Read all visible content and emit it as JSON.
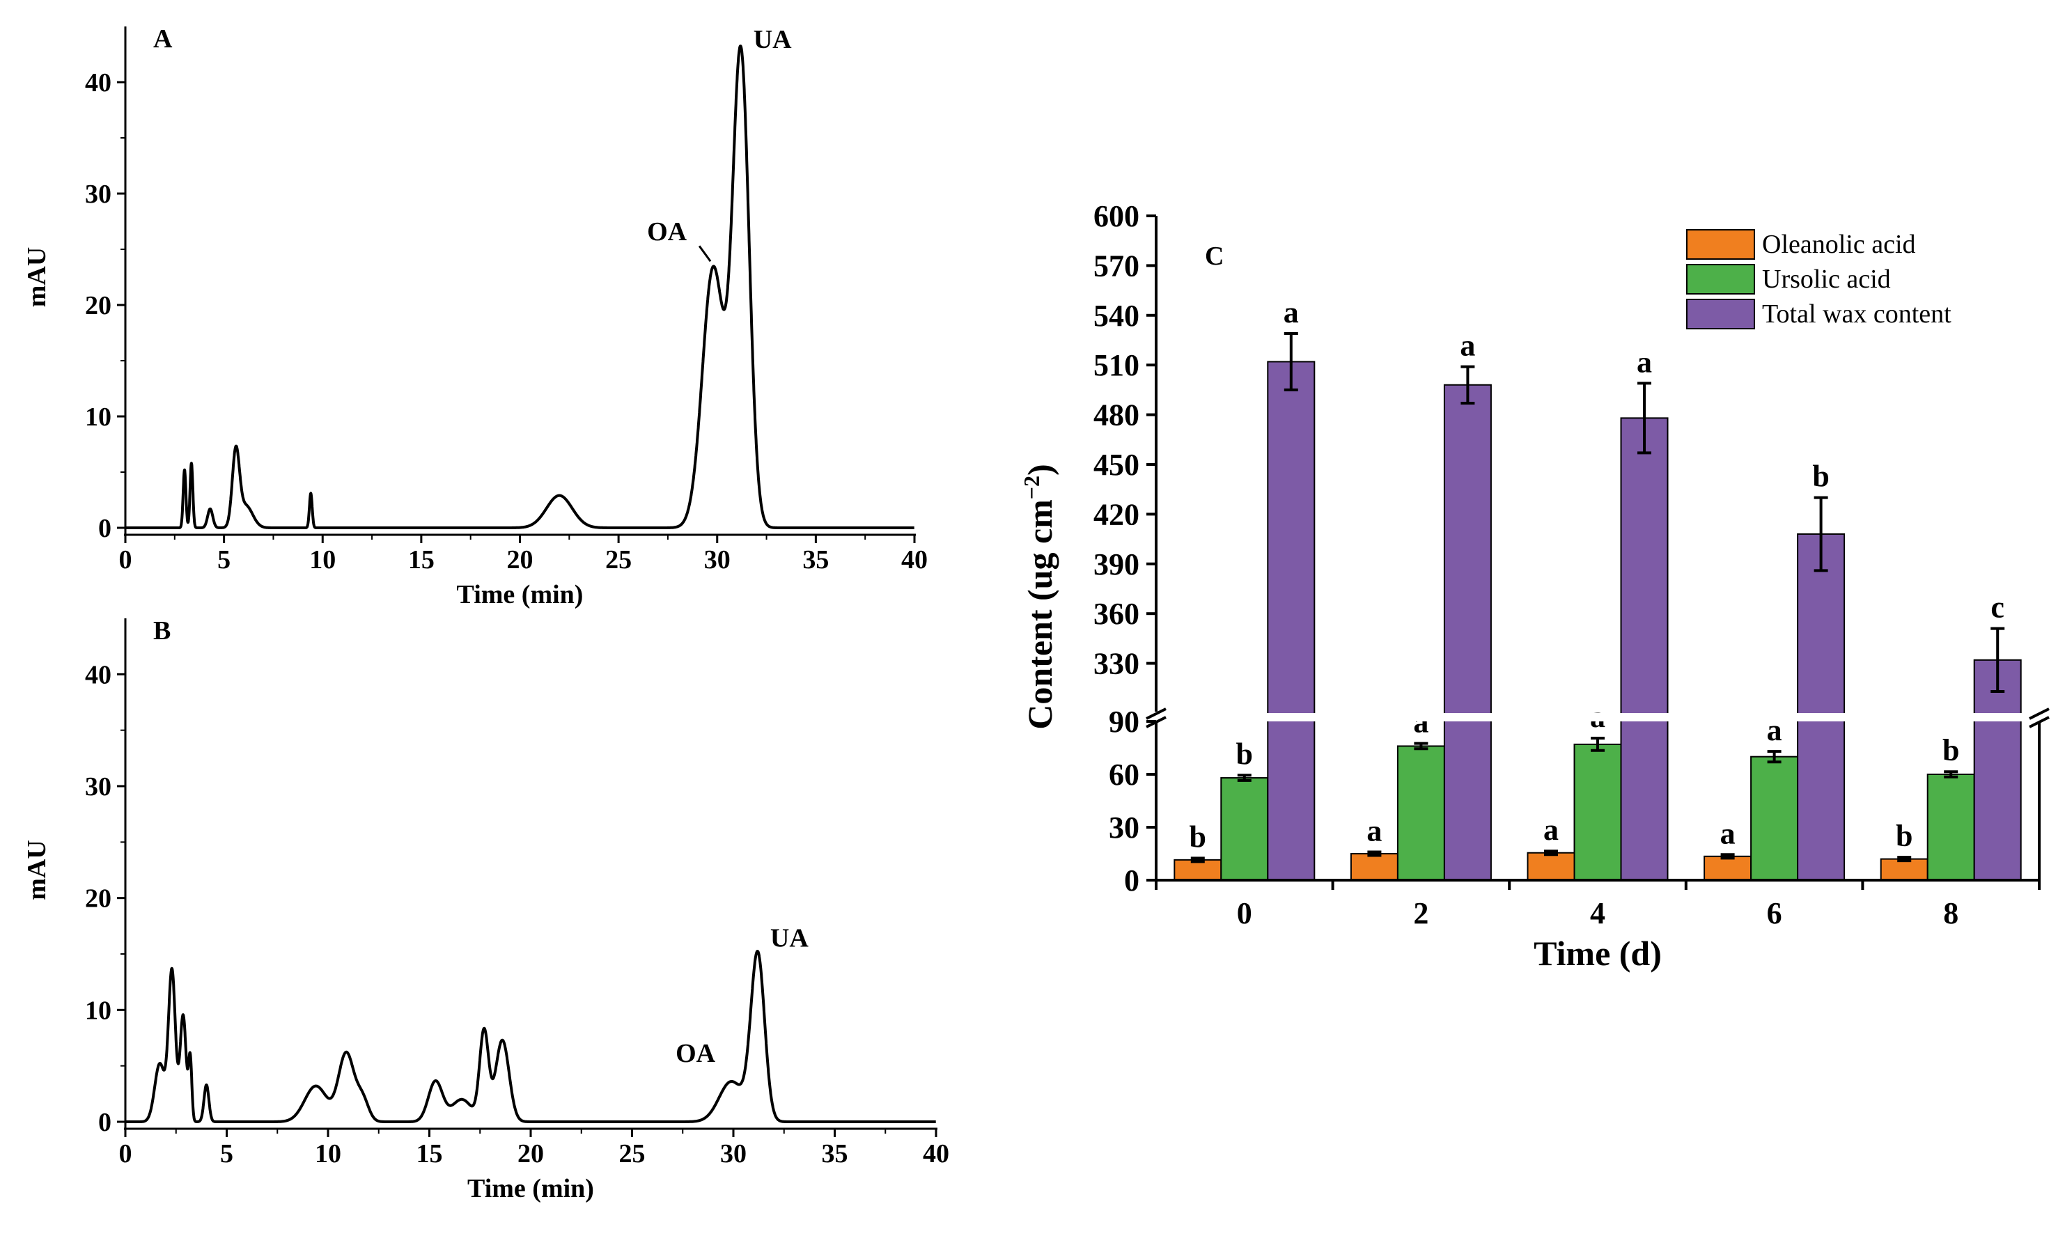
{
  "chart_data": [
    {
      "panel": "A",
      "type": "line",
      "xlabel": "Time (min)",
      "ylabel": "mAU",
      "xlim": [
        0,
        40
      ],
      "ylim": [
        0,
        45
      ],
      "xticks": [
        0,
        5,
        10,
        15,
        20,
        25,
        30,
        35,
        40
      ],
      "yticks": [
        0,
        10,
        20,
        30,
        40
      ],
      "annotations": [
        {
          "label": "OA",
          "x": 29.8,
          "y": 23.3
        },
        {
          "label": "UA",
          "x": 31.2,
          "y": 42.3
        }
      ],
      "peaks": [
        {
          "x": 3.0,
          "y": 5.2,
          "w": 0.07
        },
        {
          "x": 3.35,
          "y": 5.8,
          "w": 0.07
        },
        {
          "x": 4.3,
          "y": 1.7,
          "w": 0.13
        },
        {
          "x": 5.6,
          "y": 6.6,
          "w": 0.18
        },
        {
          "x": 6.1,
          "y": 2.0,
          "w": 0.35
        },
        {
          "x": 9.4,
          "y": 3.1,
          "w": 0.07
        },
        {
          "x": 22.0,
          "y": 2.9,
          "w": 0.65
        },
        {
          "x": 29.8,
          "y": 23.3,
          "w": 0.55
        },
        {
          "x": 31.2,
          "y": 42.3,
          "w": 0.42
        }
      ]
    },
    {
      "panel": "B",
      "type": "line",
      "xlabel": "Time (min)",
      "ylabel": "mAU",
      "xlim": [
        0,
        40
      ],
      "ylim": [
        0,
        45
      ],
      "xticks": [
        0,
        5,
        10,
        15,
        20,
        25,
        30,
        35,
        40
      ],
      "yticks": [
        0,
        10,
        20,
        30,
        40
      ],
      "annotations": [
        {
          "label": "OA",
          "x": 29.9,
          "y": 3.6
        },
        {
          "label": "UA",
          "x": 31.2,
          "y": 14.9
        }
      ],
      "peaks": [
        {
          "x": 1.7,
          "y": 5.2,
          "w": 0.25
        },
        {
          "x": 2.3,
          "y": 13.4,
          "w": 0.17
        },
        {
          "x": 2.85,
          "y": 9.5,
          "w": 0.15
        },
        {
          "x": 3.2,
          "y": 5.5,
          "w": 0.08
        },
        {
          "x": 4.0,
          "y": 3.3,
          "w": 0.12
        },
        {
          "x": 9.4,
          "y": 3.2,
          "w": 0.55
        },
        {
          "x": 10.9,
          "y": 6.1,
          "w": 0.38
        },
        {
          "x": 11.7,
          "y": 2.0,
          "w": 0.3
        },
        {
          "x": 15.3,
          "y": 3.6,
          "w": 0.35
        },
        {
          "x": 16.6,
          "y": 2.0,
          "w": 0.5
        },
        {
          "x": 17.7,
          "y": 8.0,
          "w": 0.22
        },
        {
          "x": 18.6,
          "y": 7.3,
          "w": 0.33
        },
        {
          "x": 29.9,
          "y": 3.6,
          "w": 0.6
        },
        {
          "x": 31.2,
          "y": 14.9,
          "w": 0.34
        }
      ]
    },
    {
      "panel": "C",
      "type": "bar",
      "xlabel": "Time (d)",
      "ylabel": "Content (ug cm",
      "ylabel_sup": "−2",
      "ylabel_close": ")",
      "categories": [
        "0",
        "2",
        "4",
        "6",
        "8"
      ],
      "axis_break": {
        "lower": [
          0,
          90
        ],
        "upper": [
          300,
          600
        ]
      },
      "yticks_lower": [
        0,
        30,
        60,
        90
      ],
      "yticks_upper": [
        330,
        360,
        390,
        420,
        450,
        480,
        510,
        540,
        570,
        600
      ],
      "series": [
        {
          "name": "Oleanolic acid",
          "color": "#f07f1f",
          "values": [
            11.5,
            15.0,
            15.5,
            13.5,
            12.0
          ],
          "errors": [
            1.0,
            1.0,
            1.0,
            1.0,
            1.0
          ],
          "letters": [
            "b",
            "a",
            "a",
            "a",
            "b"
          ]
        },
        {
          "name": "Ursolic acid",
          "color": "#4db049",
          "values": [
            58.0,
            76.0,
            77.0,
            70.0,
            60.0
          ],
          "errors": [
            1.5,
            1.5,
            3.5,
            3.0,
            1.5
          ],
          "letters": [
            "b",
            "a",
            "a",
            "a",
            "b"
          ]
        },
        {
          "name": "Total wax content",
          "color": "#7d5ba6",
          "values": [
            512.0,
            498.0,
            478.0,
            408.0,
            332.0
          ],
          "errors": [
            17.0,
            11.0,
            21.0,
            22.0,
            19.0
          ],
          "letters": [
            "a",
            "a",
            "a",
            "b",
            "c"
          ]
        }
      ]
    }
  ]
}
